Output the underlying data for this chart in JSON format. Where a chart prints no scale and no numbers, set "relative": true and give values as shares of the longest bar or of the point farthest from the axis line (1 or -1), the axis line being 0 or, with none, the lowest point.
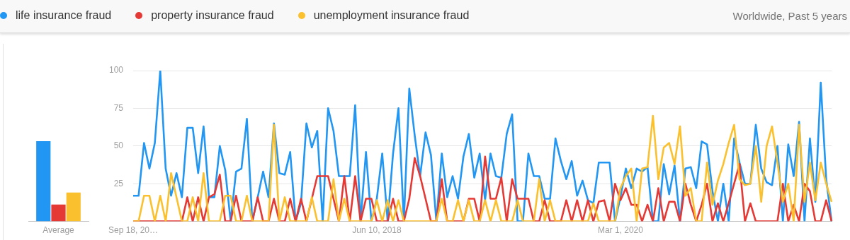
{
  "chart_data": [
    {
      "type": "bar",
      "relative": true,
      "categories": [
        "Average"
      ],
      "series": [
        {
          "color": "#2196f3",
          "values": [
            1
          ]
        },
        {
          "color": "#e53935",
          "values": [
            0.21
          ]
        },
        {
          "color": "#fbc02d",
          "values": [
            0.36
          ]
        }
      ]
    },
    {
      "type": "line",
      "legend": "top left",
      "grid": "y",
      "marker": "none",
      "line_style": "solid",
      "annotations": [
        "Worldwide, Past 5 years"
      ],
      "ylim": [
        0,
        100
      ],
      "yticks": [
        {
          "value": 0,
          "label": null
        },
        25,
        50,
        75,
        100
      ],
      "categories": [
        "Sep 18, 20…",
        null,
        null,
        null,
        null,
        null,
        null,
        null,
        null,
        null,
        null,
        null,
        null,
        null,
        null,
        null,
        null,
        null,
        null,
        null,
        null,
        null,
        null,
        null,
        null,
        null,
        null,
        null,
        null,
        null,
        null,
        null,
        null,
        null,
        null,
        null,
        null,
        null,
        null,
        null,
        null,
        null,
        null,
        null,
        null,
        "Jun 10, 2018",
        null,
        null,
        null,
        null,
        null,
        null,
        null,
        null,
        null,
        null,
        null,
        null,
        null,
        null,
        null,
        null,
        null,
        null,
        null,
        null,
        null,
        null,
        null,
        null,
        null,
        null,
        null,
        null,
        null,
        null,
        null,
        null,
        null,
        null,
        null,
        null,
        null,
        null,
        null,
        null,
        null,
        null,
        null,
        null,
        "Mar 1, 2020",
        null,
        null,
        null,
        null,
        null,
        null,
        null,
        null,
        null,
        null,
        null,
        null,
        null,
        null,
        null,
        null,
        null,
        null,
        null,
        null,
        null,
        null,
        null,
        null,
        null,
        null,
        null,
        null,
        null,
        null,
        null,
        null,
        null,
        null,
        null,
        null,
        null,
        null,
        null
      ],
      "series": [
        {
          "name": "life insurance fraud",
          "color": "#2196f3",
          "values": [
            17,
            17,
            52,
            35,
            52,
            100,
            35,
            17,
            32,
            16,
            62,
            62,
            32,
            63,
            16,
            16,
            50,
            34,
            0,
            33,
            35,
            68,
            0,
            16,
            33,
            16,
            65,
            32,
            31,
            46,
            0,
            12,
            65,
            49,
            60,
            0,
            75,
            60,
            30,
            30,
            30,
            77,
            0,
            46,
            0,
            15,
            45,
            0,
            45,
            75,
            0,
            88,
            57,
            30,
            59,
            44,
            0,
            45,
            16,
            30,
            15,
            43,
            58,
            29,
            45,
            14,
            45,
            30,
            29,
            58,
            71,
            0,
            0,
            45,
            30,
            30,
            15,
            15,
            55,
            40,
            28,
            40,
            17,
            27,
            14,
            12,
            39,
            39,
            39,
            0,
            16,
            35,
            22,
            35,
            33,
            36,
            0,
            0,
            38,
            18,
            37,
            0,
            35,
            36,
            22,
            53,
            51,
            20,
            0,
            25,
            0,
            55,
            39,
            25,
            25,
            64,
            35,
            26,
            24,
            50,
            0,
            51,
            30,
            66,
            0,
            55,
            13,
            92,
            28,
            0
          ]
        },
        {
          "name": "property insurance fraud",
          "color": "#e53935",
          "values": [
            0,
            0,
            0,
            0,
            0,
            0,
            0,
            0,
            0,
            0,
            16,
            0,
            16,
            0,
            16,
            18,
            31,
            0,
            0,
            17,
            0,
            0,
            0,
            16,
            0,
            0,
            15,
            0,
            0,
            15,
            0,
            15,
            0,
            15,
            30,
            30,
            30,
            15,
            0,
            30,
            0,
            30,
            0,
            15,
            15,
            0,
            0,
            0,
            15,
            0,
            0,
            15,
            42,
            30,
            15,
            0,
            0,
            28,
            0,
            0,
            0,
            0,
            15,
            15,
            0,
            43,
            15,
            15,
            29,
            0,
            28,
            15,
            15,
            15,
            0,
            0,
            14,
            0,
            0,
            0,
            14,
            0,
            14,
            0,
            14,
            0,
            13,
            14,
            0,
            25,
            14,
            22,
            11,
            11,
            0,
            11,
            0,
            22,
            0,
            13,
            13,
            0,
            25,
            11,
            0,
            11,
            25,
            0,
            12,
            0,
            12,
            25,
            38,
            0,
            12,
            0,
            0,
            0,
            0,
            0,
            25,
            0,
            11,
            0,
            25,
            20,
            0,
            0,
            14,
            0
          ]
        },
        {
          "name": "unemployment insurance fraud",
          "color": "#fbc02d",
          "values": [
            0,
            0,
            17,
            17,
            0,
            17,
            0,
            32,
            16,
            0,
            0,
            16,
            0,
            32,
            0,
            0,
            0,
            17,
            17,
            0,
            0,
            17,
            0,
            0,
            0,
            0,
            64,
            0,
            16,
            0,
            0,
            0,
            0,
            16,
            0,
            0,
            0,
            28,
            0,
            15,
            0,
            0,
            0,
            0,
            0,
            14,
            0,
            14,
            0,
            14,
            0,
            0,
            0,
            0,
            0,
            0,
            0,
            15,
            0,
            0,
            14,
            0,
            14,
            0,
            0,
            14,
            0,
            14,
            0,
            0,
            0,
            14,
            0,
            0,
            0,
            28,
            0,
            14,
            0,
            0,
            0,
            0,
            0,
            0,
            0,
            12,
            0,
            0,
            0,
            0,
            22,
            30,
            35,
            0,
            35,
            36,
            70,
            28,
            49,
            52,
            38,
            63,
            17,
            22,
            0,
            0,
            39,
            11,
            27,
            38,
            52,
            64,
            28,
            24,
            25,
            50,
            13,
            50,
            63,
            39,
            13,
            25,
            0,
            64,
            13,
            39,
            14,
            39,
            25,
            13
          ]
        }
      ]
    }
  ]
}
